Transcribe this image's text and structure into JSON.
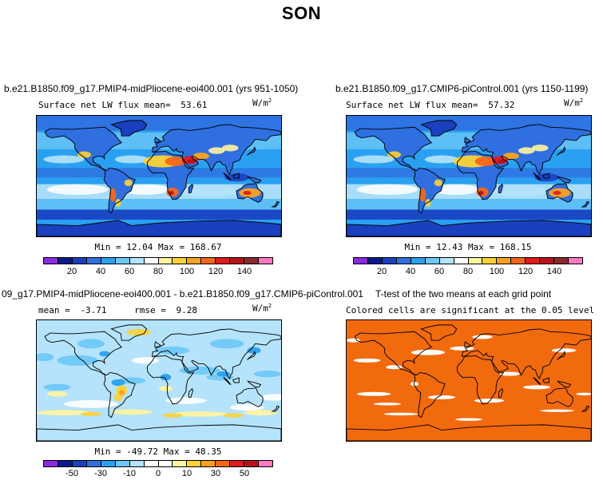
{
  "figure": {
    "title": "SON"
  },
  "chart_data": [
    {
      "type": "heatmap",
      "panel": "top-left",
      "title": "b.e21.B1850.f09_g17.PMIP4-midPliocene-eoi400.001 (yrs 951-1050)",
      "field_label": "Surface net LW flux mean=",
      "mean": "53.61",
      "units": "W/m",
      "units_exp": "2",
      "min_label": "Min =",
      "min": "12.04",
      "max_label": "Max =",
      "max": "168.67",
      "colorbar_ticks": [
        "20",
        "40",
        "60",
        "80",
        "100",
        "120",
        "140"
      ],
      "colorbar_colors": [
        "#8a2be2",
        "#0a1a8c",
        "#1a3fbf",
        "#2f6fe0",
        "#2aa0f0",
        "#6cc7f7",
        "#b5e3fb",
        "#ffffff",
        "#fff3a0",
        "#fdd235",
        "#fba11e",
        "#f5661a",
        "#e01b1b",
        "#b5121b",
        "#8b2a2a",
        "#ff79c0"
      ]
    },
    {
      "type": "heatmap",
      "panel": "top-right",
      "title": "b.e21.B1850.f09_g17.CMIP6-piControl.001 (yrs 1150-1199)",
      "field_label": "Surface net LW flux mean=",
      "mean": "57.32",
      "units": "W/m",
      "units_exp": "2",
      "min_label": "Min =",
      "min": "12.43",
      "max_label": "Max =",
      "max": "168.15",
      "colorbar_ticks": [
        "20",
        "40",
        "60",
        "80",
        "100",
        "120",
        "140"
      ],
      "colorbar_colors": [
        "#8a2be2",
        "#0a1a8c",
        "#1a3fbf",
        "#2f6fe0",
        "#2aa0f0",
        "#6cc7f7",
        "#b5e3fb",
        "#ffffff",
        "#fff3a0",
        "#fdd235",
        "#fba11e",
        "#f5661a",
        "#e01b1b",
        "#b5121b",
        "#8b2a2a",
        "#ff79c0"
      ]
    },
    {
      "type": "heatmap",
      "panel": "bottom-left",
      "title": "09_g17.PMIP4-midPliocene-eoi400.001 - b.e21.B1850.f09_g17.CMIP6-piControl.001",
      "mean_label": "mean =",
      "mean": "-3.71",
      "rmse_label": "rmse =",
      "rmse": "9.28",
      "units": "W/m",
      "units_exp": "2",
      "min_label": "Min =",
      "min": "-49.72",
      "max_label": "Max =",
      "max": "48.35",
      "colorbar_ticks": [
        "-50",
        "-30",
        "-10",
        "0",
        "10",
        "30",
        "50"
      ],
      "colorbar_colors": [
        "#8a2be2",
        "#0a1a8c",
        "#1a3fbf",
        "#2f6fe0",
        "#2aa0f0",
        "#6cc7f7",
        "#b5e3fb",
        "#ffffff",
        "#ffffff",
        "#fff3a0",
        "#fdd235",
        "#fba11e",
        "#f5661a",
        "#e01b1b",
        "#b5121b",
        "#ff79c0"
      ]
    },
    {
      "type": "heatmap",
      "panel": "bottom-right",
      "title": "T-test of the two means at each grid point",
      "subtitle": "Colored cells are significant at the 0.05 level",
      "fill_color": "#f26a0e"
    }
  ]
}
